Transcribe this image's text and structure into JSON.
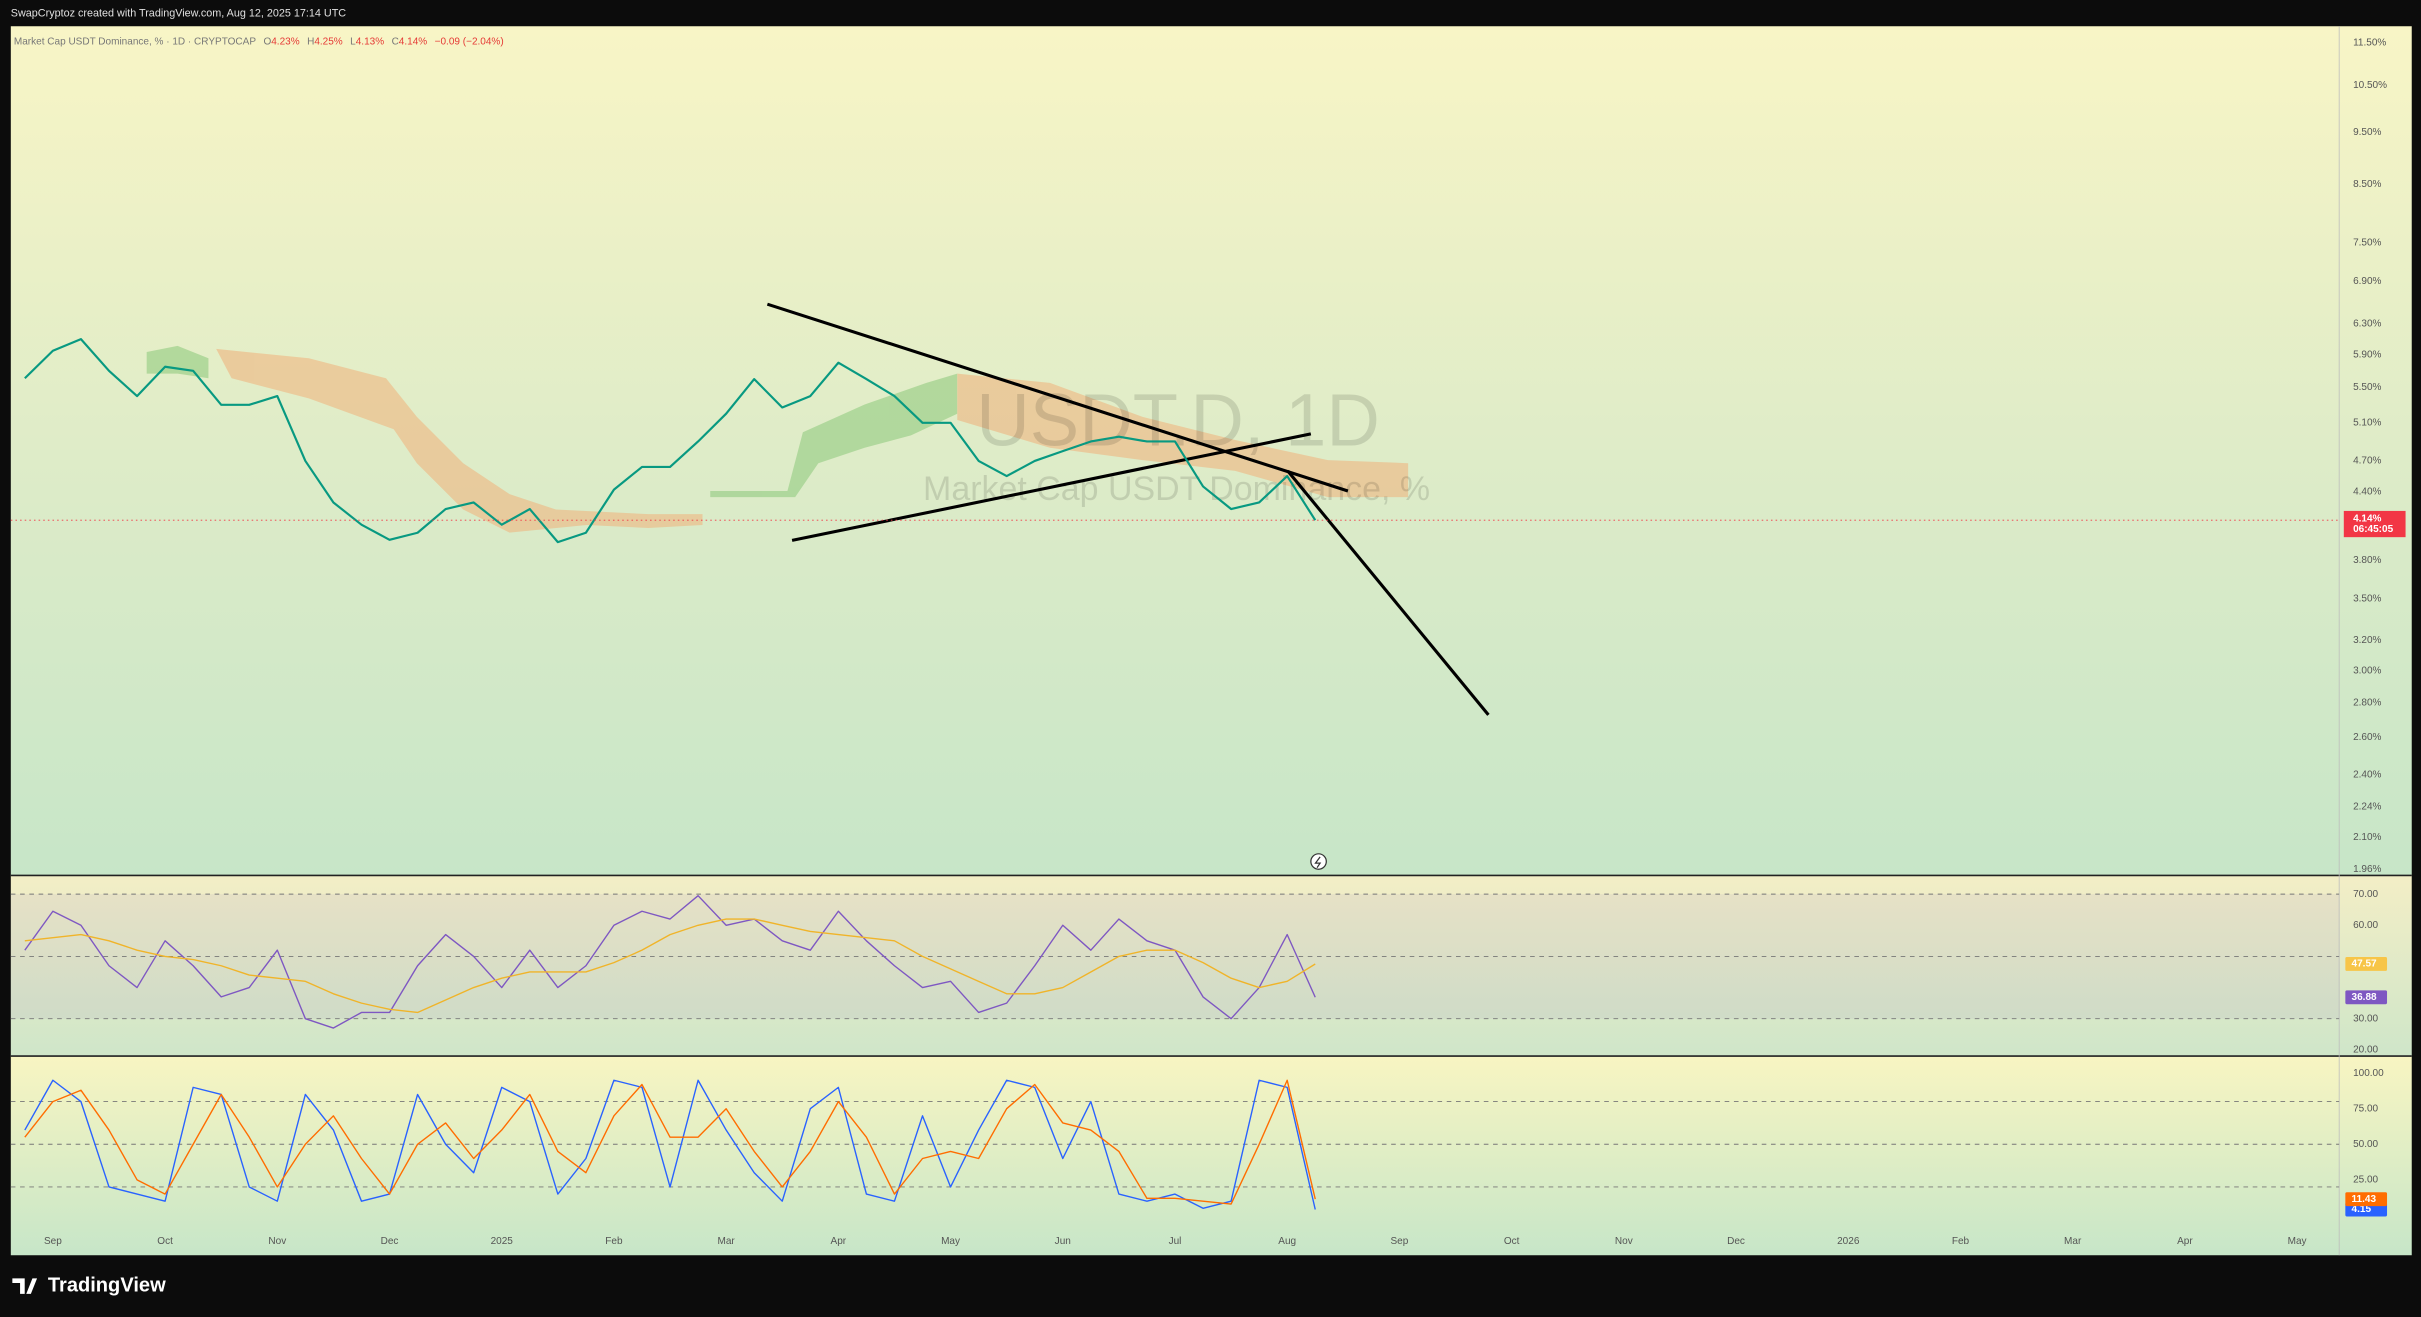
{
  "header": {
    "text": "SwapCryptoz created with TradingView.com, Aug 12, 2025 17:14 UTC"
  },
  "legend": {
    "symbol": "Market Cap USDT Dominance, % · 1D · CRYPTOCAP",
    "ohlc": [
      {
        "key": "O",
        "value": "4.23%"
      },
      {
        "key": "H",
        "value": "4.25%"
      },
      {
        "key": "L",
        "value": "4.13%"
      },
      {
        "key": "C",
        "value": "4.14%"
      }
    ],
    "change": "−0.09 (−2.04%)"
  },
  "watermark": {
    "ticker": "USDT.D, 1D",
    "name": "Market Cap USDT Dominance, %"
  },
  "footer": {
    "brand": "TradingView"
  },
  "chart_data": [
    {
      "type": "line",
      "log_scale": true,
      "ylim": [
        1.935,
        11.92
      ],
      "yticks": [
        {
          "value": 11.5,
          "label": "11.50%"
        },
        {
          "value": 10.5,
          "label": "10.50%"
        },
        {
          "value": 9.5,
          "label": "9.50%"
        },
        {
          "value": 8.5,
          "label": "8.50%"
        },
        {
          "value": 7.5,
          "label": "7.50%"
        },
        {
          "value": 6.9,
          "label": "6.90%"
        },
        {
          "value": 6.3,
          "label": "6.30%"
        },
        {
          "value": 5.9,
          "label": "5.90%"
        },
        {
          "value": 5.5,
          "label": "5.50%"
        },
        {
          "value": 5.1,
          "label": "5.10%"
        },
        {
          "value": 4.7,
          "label": "4.70%"
        },
        {
          "value": 4.4,
          "label": "4.40%"
        },
        {
          "value": 3.8,
          "label": "3.80%"
        },
        {
          "value": 3.5,
          "label": "3.50%"
        },
        {
          "value": 3.2,
          "label": "3.20%"
        },
        {
          "value": 3,
          "label": "3.00%"
        },
        {
          "value": 2.8,
          "label": "2.80%"
        },
        {
          "value": 2.6,
          "label": "2.60%"
        },
        {
          "value": 2.4,
          "label": "2.40%"
        },
        {
          "value": 2.24,
          "label": "2.24%"
        },
        {
          "value": 2.1,
          "label": "2.10%"
        },
        {
          "value": 1.96,
          "label": "1.96%"
        }
      ],
      "last_price": {
        "value": 4.14,
        "label": "4.14%",
        "countdown": "06:45:05",
        "color": "#f23645"
      },
      "series": [
        {
          "color": "#089981",
          "values": [
            5.61,
            5.95,
            6.1,
            5.7,
            5.4,
            5.75,
            5.7,
            5.3,
            5.3,
            5.4,
            4.7,
            4.3,
            4.1,
            3.97,
            4.03,
            4.24,
            4.3,
            4.1,
            4.24,
            3.95,
            4.03,
            4.42,
            4.64,
            4.64,
            4.9,
            5.2,
            5.6,
            5.27,
            5.4,
            5.8,
            5.6,
            5.4,
            5.1,
            5.1,
            4.7,
            4.55,
            4.7,
            4.8,
            4.9,
            4.95,
            4.9,
            4.9,
            4.45,
            4.24,
            4.3,
            4.55,
            4.14,
            null,
            null,
            null,
            null,
            null,
            null,
            null,
            null,
            null,
            null,
            null,
            null,
            null,
            null,
            null,
            null,
            null,
            null,
            null,
            null,
            null,
            null,
            null,
            null,
            null,
            null,
            null,
            null,
            null,
            null,
            null,
            null,
            null,
            null,
            null,
            null
          ]
        }
      ]
    },
    {
      "type": "line",
      "ylim": [
        18,
        76
      ],
      "yticks": [
        {
          "value": 70,
          "label": "70.00"
        },
        {
          "value": 60,
          "label": "60.00"
        },
        {
          "value": 30,
          "label": "30.00"
        },
        {
          "value": 20,
          "label": "20.00"
        }
      ],
      "levels": [
        70,
        50,
        30
      ],
      "band_color": "#7e57c2",
      "series": [
        {
          "color": "#7e57c2",
          "values": [
            52,
            64.5,
            60,
            47,
            40,
            55,
            47,
            37,
            40,
            52,
            30,
            27,
            32,
            32,
            47,
            57,
            50,
            40,
            52,
            40,
            47,
            60,
            64.5,
            62,
            69.5,
            60,
            62,
            55,
            52,
            64.5,
            55,
            47,
            40,
            42,
            32,
            35,
            47,
            60,
            52,
            62,
            55,
            52,
            37,
            30,
            40,
            57,
            36.88,
            null,
            null,
            null,
            null,
            null,
            null,
            null,
            null,
            null,
            null,
            null,
            null,
            null,
            null,
            null,
            null,
            null,
            null,
            null,
            null,
            null,
            null,
            null,
            null,
            null,
            null,
            null,
            null,
            null,
            null,
            null,
            null,
            null,
            null,
            null,
            null
          ]
        },
        {
          "color": "#f0b429",
          "values": [
            55,
            56,
            57,
            55,
            52,
            50,
            49,
            47,
            44,
            43,
            42,
            38,
            35,
            33,
            32,
            36,
            40,
            43,
            45,
            45,
            45,
            48,
            52,
            57,
            60,
            62,
            62,
            60,
            58,
            57,
            56,
            55,
            50,
            46,
            42,
            38,
            38,
            40,
            45,
            50,
            52,
            52,
            48,
            43,
            40,
            42,
            47.57,
            null,
            null,
            null,
            null,
            null,
            null,
            null,
            null,
            null,
            null,
            null,
            null,
            null,
            null,
            null,
            null,
            null,
            null,
            null,
            null,
            null,
            null,
            null,
            null,
            null,
            null,
            null,
            null,
            null,
            null,
            null,
            null,
            null,
            null,
            null,
            null
          ]
        }
      ]
    },
    {
      "type": "line",
      "ylim": [
        -28,
        112
      ],
      "yticks": [
        {
          "value": 100,
          "label": "100.00"
        },
        {
          "value": 75,
          "label": "75.00"
        },
        {
          "value": 50,
          "label": "50.00"
        },
        {
          "value": 25,
          "label": "25.00"
        }
      ],
      "levels": [
        80,
        50,
        20
      ],
      "categories": [
        null,
        "Sep",
        null,
        null,
        null,
        "Oct",
        null,
        null,
        null,
        "Nov",
        null,
        null,
        null,
        "Dec",
        null,
        null,
        null,
        "2025",
        null,
        null,
        null,
        "Feb",
        null,
        null,
        null,
        "Mar",
        null,
        null,
        null,
        "Apr",
        null,
        null,
        null,
        "May",
        null,
        null,
        null,
        "Jun",
        null,
        null,
        null,
        "Jul",
        null,
        null,
        null,
        "Aug",
        null,
        null,
        null,
        "Sep",
        null,
        null,
        null,
        "Oct",
        null,
        null,
        null,
        "Nov",
        null,
        null,
        null,
        "Dec",
        null,
        null,
        null,
        "2026",
        null,
        null,
        null,
        "Feb",
        null,
        null,
        null,
        "Mar",
        null,
        null,
        null,
        "Apr",
        null,
        null,
        null,
        "May",
        null
      ],
      "series": [
        {
          "color": "#2962ff",
          "values": [
            60,
            95,
            80,
            20,
            15,
            10,
            90,
            85,
            20,
            10,
            85,
            60,
            10,
            15,
            85,
            50,
            30,
            90,
            80,
            15,
            40,
            95,
            90,
            20,
            95,
            60,
            30,
            10,
            75,
            90,
            15,
            10,
            70,
            20,
            60,
            95,
            90,
            40,
            80,
            15,
            10,
            15,
            5,
            10,
            95,
            90,
            4.15,
            null,
            null,
            null,
            null,
            null,
            null,
            null,
            null,
            null,
            null,
            null,
            null,
            null,
            null,
            null,
            null,
            null,
            null,
            null,
            null,
            null,
            null,
            null,
            null,
            null,
            null,
            null,
            null,
            null,
            null,
            null,
            null,
            null,
            null,
            null,
            null
          ]
        },
        {
          "color": "#ff6d00",
          "values": [
            55,
            80,
            88,
            60,
            25,
            15,
            50,
            85,
            55,
            20,
            50,
            70,
            40,
            15,
            50,
            65,
            40,
            60,
            85,
            45,
            30,
            70,
            92,
            55,
            55,
            75,
            45,
            20,
            45,
            80,
            55,
            15,
            40,
            45,
            40,
            75,
            92,
            65,
            60,
            45,
            12,
            12,
            10,
            8,
            50,
            95,
            11.43,
            null,
            null,
            null,
            null,
            null,
            null,
            null,
            null,
            null,
            null,
            null,
            null,
            null,
            null,
            null,
            null,
            null,
            null,
            null,
            null,
            null,
            null,
            null,
            null,
            null,
            null,
            null,
            null,
            null,
            null,
            null,
            null,
            null,
            null,
            null,
            null
          ]
        }
      ]
    }
  ]
}
